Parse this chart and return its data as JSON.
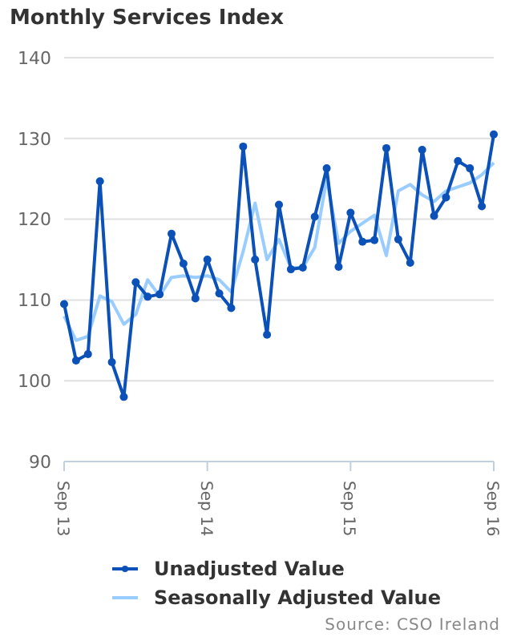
{
  "chart_data": {
    "type": "line",
    "title": "Monthly Services Index",
    "categories": [
      "Sep 13",
      null,
      null,
      null,
      null,
      null,
      null,
      null,
      null,
      null,
      null,
      null,
      "Sep 14",
      null,
      null,
      null,
      null,
      null,
      null,
      null,
      null,
      null,
      null,
      null,
      "Sep 15",
      null,
      null,
      null,
      null,
      null,
      null,
      null,
      null,
      null,
      null,
      null,
      "Sep 16"
    ],
    "series": [
      {
        "name": "Unadjusted Value",
        "color": "#0b51b7",
        "marker": "circle",
        "values": [
          109.5,
          102.5,
          103.3,
          124.7,
          102.3,
          98,
          112.2,
          110.4,
          110.7,
          118.2,
          114.5,
          110.2,
          115,
          110.8,
          109,
          129,
          115,
          105.7,
          121.8,
          113.8,
          114,
          120.3,
          126.3,
          114.1,
          120.8,
          117.2,
          117.4,
          128.8,
          117.5,
          114.6,
          128.6,
          120.4,
          122.7,
          127.2,
          126.3,
          121.6,
          130.5
        ]
      },
      {
        "name": "Seasonally Adjusted Value",
        "color": "#99ccff",
        "marker": "none",
        "values": [
          108,
          105,
          105.5,
          110.5,
          109.8,
          107,
          108.2,
          112.5,
          110.5,
          112.8,
          113,
          112.8,
          113,
          112.5,
          111,
          116,
          122,
          115,
          117.5,
          114,
          114,
          116.5,
          125,
          117,
          118.5,
          119.5,
          120.5,
          115.5,
          123.5,
          124.3,
          123,
          122.2,
          123.5,
          124,
          124.5,
          125.5,
          127
        ]
      }
    ],
    "ylim": [
      90,
      140
    ],
    "yticks": [
      90,
      100,
      110,
      120,
      130,
      140
    ],
    "grid": "y",
    "legend": "bottom",
    "annotations": [
      "Source: CSO Ireland"
    ]
  }
}
